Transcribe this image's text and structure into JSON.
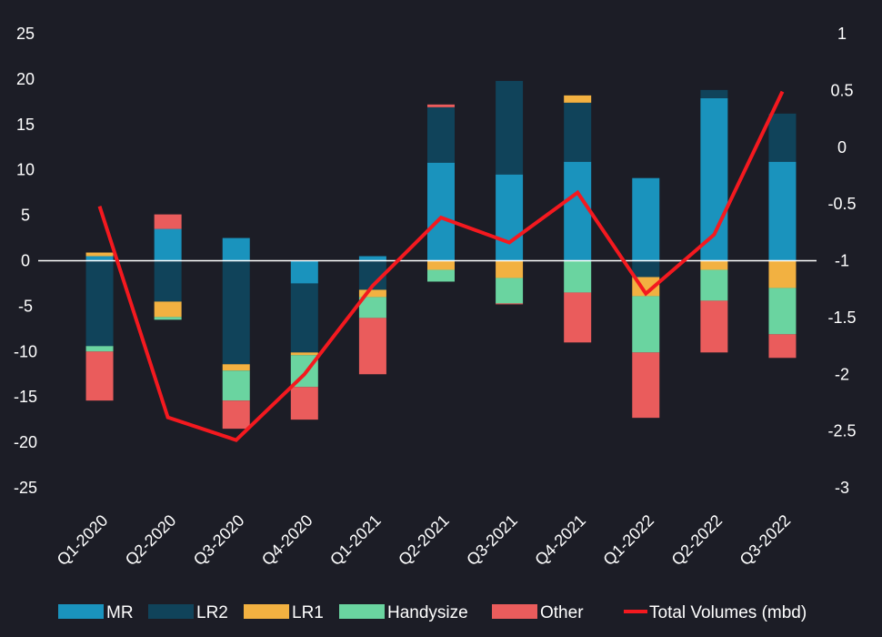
{
  "chart_data": {
    "type": "bar",
    "stacked": true,
    "categories": [
      "Q1-2020",
      "Q2-2020",
      "Q3-2020",
      "Q4-2020",
      "Q1-2021",
      "Q2-2021",
      "Q3-2021",
      "Q4-2021",
      "Q1-2022",
      "Q2-2022",
      "Q3-2022"
    ],
    "series": [
      {
        "name": "MR",
        "color": "#1a93bd",
        "values": [
          0.5,
          3.5,
          2.5,
          -2.5,
          0.5,
          10.8,
          9.5,
          10.9,
          9.1,
          17.9,
          10.9
        ]
      },
      {
        "name": "LR2",
        "color": "#10435a",
        "values": [
          -9.4,
          -4.5,
          -11.4,
          -7.6,
          -3.2,
          6.1,
          10.3,
          6.5,
          -1.8,
          0.9,
          5.3
        ]
      },
      {
        "name": "LR1",
        "color": "#f2b141",
        "values": [
          0.4,
          -1.7,
          -0.7,
          -0.3,
          -0.8,
          -1.0,
          -1.9,
          0.8,
          -2.1,
          -1.0,
          -3.0
        ]
      },
      {
        "name": "Handysize",
        "color": "#6ad4a0",
        "values": [
          -0.6,
          -0.3,
          -3.3,
          -3.5,
          -2.3,
          -1.3,
          -2.8,
          -3.5,
          -6.2,
          -3.4,
          -5.1
        ]
      },
      {
        "name": "Other",
        "color": "#ea5c5c",
        "values": [
          -5.4,
          1.6,
          -3.1,
          -3.6,
          -6.2,
          0.3,
          -0.1,
          -5.5,
          -7.2,
          -5.7,
          -2.6
        ]
      }
    ],
    "line": {
      "name": "Total Volumes (mbd)",
      "color": "#f4191f",
      "axis": "right",
      "values": [
        -0.52,
        -2.38,
        -2.58,
        -2.0,
        -1.22,
        -0.62,
        -0.84,
        -0.4,
        -1.29,
        -0.77,
        0.49
      ]
    },
    "ylim_left": [
      -25,
      25
    ],
    "yticks_left": [
      25,
      20,
      15,
      10,
      5,
      0,
      -5,
      -10,
      -15,
      -20,
      -25
    ],
    "ylim_right": [
      -3,
      1
    ],
    "yticks_right": [
      "1",
      "0.5",
      "0",
      "-0.5",
      "-1",
      "-1.5",
      "-2",
      "-2.5",
      "-3"
    ],
    "zero_line_color": "#ffffff",
    "grid": false,
    "legend_position": "bottom",
    "title": "",
    "xlabel": "",
    "ylabel": ""
  }
}
